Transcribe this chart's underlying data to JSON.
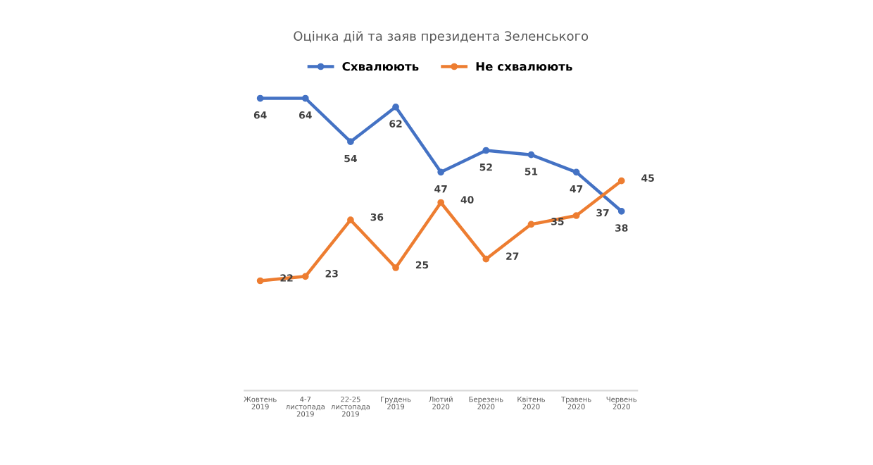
{
  "chart_data": {
    "type": "line",
    "title": "Оцінка дій та заяв президента Зеленського",
    "categories": [
      "Жовтень 2019",
      "4-7 листопада 2019",
      "22-25 листопада 2019",
      "Грудень 2019",
      "Лютий 2020",
      "Березень 2020",
      "Квітень 2020",
      "Травень 2020",
      "Червень 2020"
    ],
    "series": [
      {
        "name": "Схвалюють",
        "color": "#4472c4",
        "values": [
          64,
          64,
          54,
          62,
          47,
          52,
          51,
          47,
          38
        ]
      },
      {
        "name": "Не схвалюють",
        "color": "#ed7d31",
        "values": [
          22,
          23,
          36,
          25,
          40,
          27,
          35,
          37,
          45
        ]
      }
    ],
    "data_labels": true,
    "legend": "top",
    "marker": "circle",
    "line_style": "solid",
    "grid": false,
    "tick_labels": "x"
  }
}
